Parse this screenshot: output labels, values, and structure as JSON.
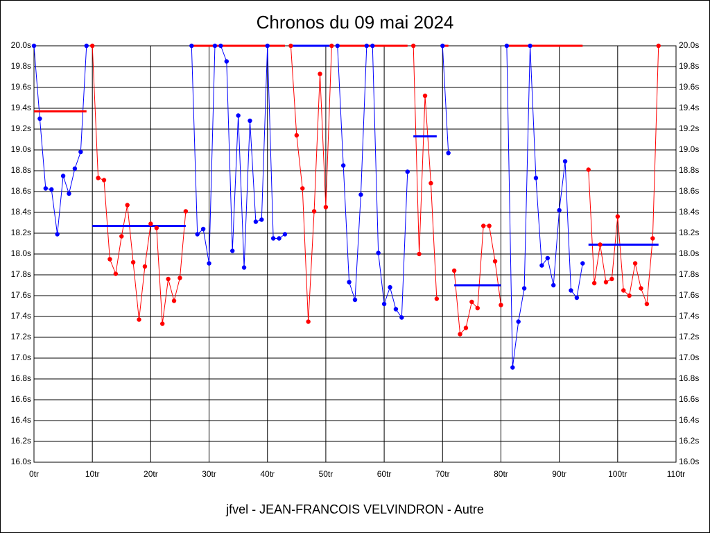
{
  "chart_data": {
    "type": "line",
    "title": "Chronos du 09 mai 2024",
    "subtitle": "jfvel - JEAN-FRANCOIS VELVINDRON - Autre",
    "xlim": [
      0,
      110
    ],
    "ylim": [
      16.0,
      20.0
    ],
    "grid": true,
    "xticks": [
      {
        "value": 0,
        "label": "0tr"
      },
      {
        "value": 10,
        "label": "10tr"
      },
      {
        "value": 20,
        "label": "20tr"
      },
      {
        "value": 30,
        "label": "30tr"
      },
      {
        "value": 40,
        "label": "40tr"
      },
      {
        "value": 50,
        "label": "50tr"
      },
      {
        "value": 60,
        "label": "60tr"
      },
      {
        "value": 70,
        "label": "70tr"
      },
      {
        "value": 80,
        "label": "80tr"
      },
      {
        "value": 90,
        "label": "90tr"
      },
      {
        "value": 100,
        "label": "100tr"
      },
      {
        "value": 110,
        "label": "110tr"
      }
    ],
    "yticks": [
      {
        "value": 16.0,
        "label": "16.0s"
      },
      {
        "value": 16.2,
        "label": "16.2s"
      },
      {
        "value": 16.4,
        "label": "16.4s"
      },
      {
        "value": 16.6,
        "label": "16.6s"
      },
      {
        "value": 16.8,
        "label": "16.8s"
      },
      {
        "value": 17.0,
        "label": "17.0s"
      },
      {
        "value": 17.2,
        "label": "17.2s"
      },
      {
        "value": 17.4,
        "label": "17.4s"
      },
      {
        "value": 17.6,
        "label": "17.6s"
      },
      {
        "value": 17.8,
        "label": "17.8s"
      },
      {
        "value": 18.0,
        "label": "18.0s"
      },
      {
        "value": 18.2,
        "label": "18.2s"
      },
      {
        "value": 18.4,
        "label": "18.4s"
      },
      {
        "value": 18.6,
        "label": "18.6s"
      },
      {
        "value": 18.8,
        "label": "18.8s"
      },
      {
        "value": 19.0,
        "label": "19.0s"
      },
      {
        "value": 19.2,
        "label": "19.2s"
      },
      {
        "value": 19.4,
        "label": "19.4s"
      },
      {
        "value": 19.6,
        "label": "19.6s"
      },
      {
        "value": 19.8,
        "label": "19.8s"
      },
      {
        "value": 20.0,
        "label": "20.0s"
      }
    ],
    "series": [
      {
        "color": "#0000ff",
        "mean_color": "#ff0000",
        "mean": 19.37,
        "x": [
          0,
          1,
          2,
          3,
          4,
          5,
          6,
          7,
          8,
          9
        ],
        "values": [
          20.0,
          19.3,
          18.63,
          18.62,
          18.19,
          18.75,
          18.58,
          18.82,
          18.98,
          20.0
        ]
      },
      {
        "color": "#ff0000",
        "mean_color": "#0000ff",
        "mean": 18.27,
        "x": [
          10,
          11,
          12,
          13,
          14,
          15,
          16,
          17,
          18,
          19,
          20,
          21,
          22,
          23,
          24,
          25,
          26
        ],
        "values": [
          20.0,
          18.73,
          18.71,
          17.95,
          17.81,
          18.17,
          18.47,
          17.92,
          17.37,
          17.88,
          18.29,
          18.25,
          17.33,
          17.76,
          17.55,
          17.77,
          18.41
        ]
      },
      {
        "color": "#0000ff",
        "mean_color": "#ff0000",
        "mean": 20.0,
        "x": [
          27,
          28,
          29,
          30,
          31,
          32,
          33,
          34,
          35,
          36,
          37,
          38,
          39,
          40,
          41,
          42,
          43
        ],
        "values": [
          20.0,
          18.19,
          18.24,
          17.91,
          20.0,
          20.0,
          19.85,
          18.03,
          19.33,
          17.87,
          19.28,
          18.31,
          18.33,
          20.0,
          18.15,
          18.15,
          18.19
        ]
      },
      {
        "color": "#ff0000",
        "mean_color": "#0000ff",
        "mean": 20.0,
        "x": [
          44,
          45,
          46,
          47,
          48,
          49,
          50,
          51
        ],
        "values": [
          20.0,
          19.14,
          18.63,
          17.35,
          18.41,
          19.73,
          18.45,
          20.0
        ]
      },
      {
        "color": "#0000ff",
        "mean_color": "#ff0000",
        "mean": 20.0,
        "x": [
          52,
          53,
          54,
          55,
          56,
          57,
          58,
          59,
          60,
          61,
          62,
          63,
          64
        ],
        "values": [
          20.0,
          18.85,
          17.73,
          17.56,
          18.57,
          20.0,
          20.0,
          18.01,
          17.52,
          17.68,
          17.47,
          17.39,
          18.79
        ]
      },
      {
        "color": "#ff0000",
        "mean_color": "#0000ff",
        "mean": 19.13,
        "x": [
          65,
          66,
          67,
          68,
          69
        ],
        "values": [
          20.0,
          18.0,
          19.52,
          18.68,
          17.57
        ]
      },
      {
        "color": "#0000ff",
        "mean_color": "#ff0000",
        "mean": 20.0,
        "x": [
          70,
          71
        ],
        "values": [
          20.0,
          18.97
        ]
      },
      {
        "color": "#ff0000",
        "mean_color": "#0000ff",
        "mean": 17.7,
        "x": [
          72,
          73,
          74,
          75,
          76,
          77,
          78,
          79,
          80
        ],
        "values": [
          17.84,
          17.23,
          17.29,
          17.54,
          17.48,
          18.27,
          18.27,
          17.93,
          17.51
        ]
      },
      {
        "color": "#0000ff",
        "mean_color": "#ff0000",
        "mean": 20.0,
        "x": [
          81,
          82,
          83,
          84,
          85,
          86,
          87,
          88,
          89,
          90,
          91,
          92,
          93,
          94
        ],
        "values": [
          20.0,
          16.91,
          17.35,
          17.67,
          20.0,
          18.73,
          17.89,
          17.96,
          17.7,
          18.42,
          18.89,
          17.65,
          17.58,
          17.91
        ]
      },
      {
        "color": "#ff0000",
        "mean_color": "#0000ff",
        "mean": 18.09,
        "x": [
          95,
          96,
          97,
          98,
          99,
          100,
          101,
          102,
          103,
          104,
          105,
          106,
          107
        ],
        "values": [
          18.81,
          17.72,
          18.09,
          17.73,
          17.76,
          18.36,
          17.65,
          17.6,
          17.91,
          17.67,
          17.52,
          18.15,
          20.0
        ]
      }
    ]
  }
}
